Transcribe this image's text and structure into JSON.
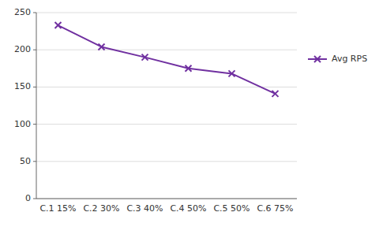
{
  "chart_data": {
    "type": "line",
    "categories": [
      "C.1 15%",
      "C.2 30%",
      "C.3 40%",
      "C.4 50%",
      "C.5 50%",
      "C.6 75%"
    ],
    "series": [
      {
        "name": "Avg RPS",
        "color": "#7030A0",
        "marker": "x",
        "values": [
          233,
          204,
          190,
          175,
          168,
          141
        ]
      }
    ],
    "ylim": [
      0,
      250
    ],
    "yticks": [
      0,
      50,
      100,
      150,
      200,
      250
    ],
    "grid": true,
    "legend": "right"
  }
}
